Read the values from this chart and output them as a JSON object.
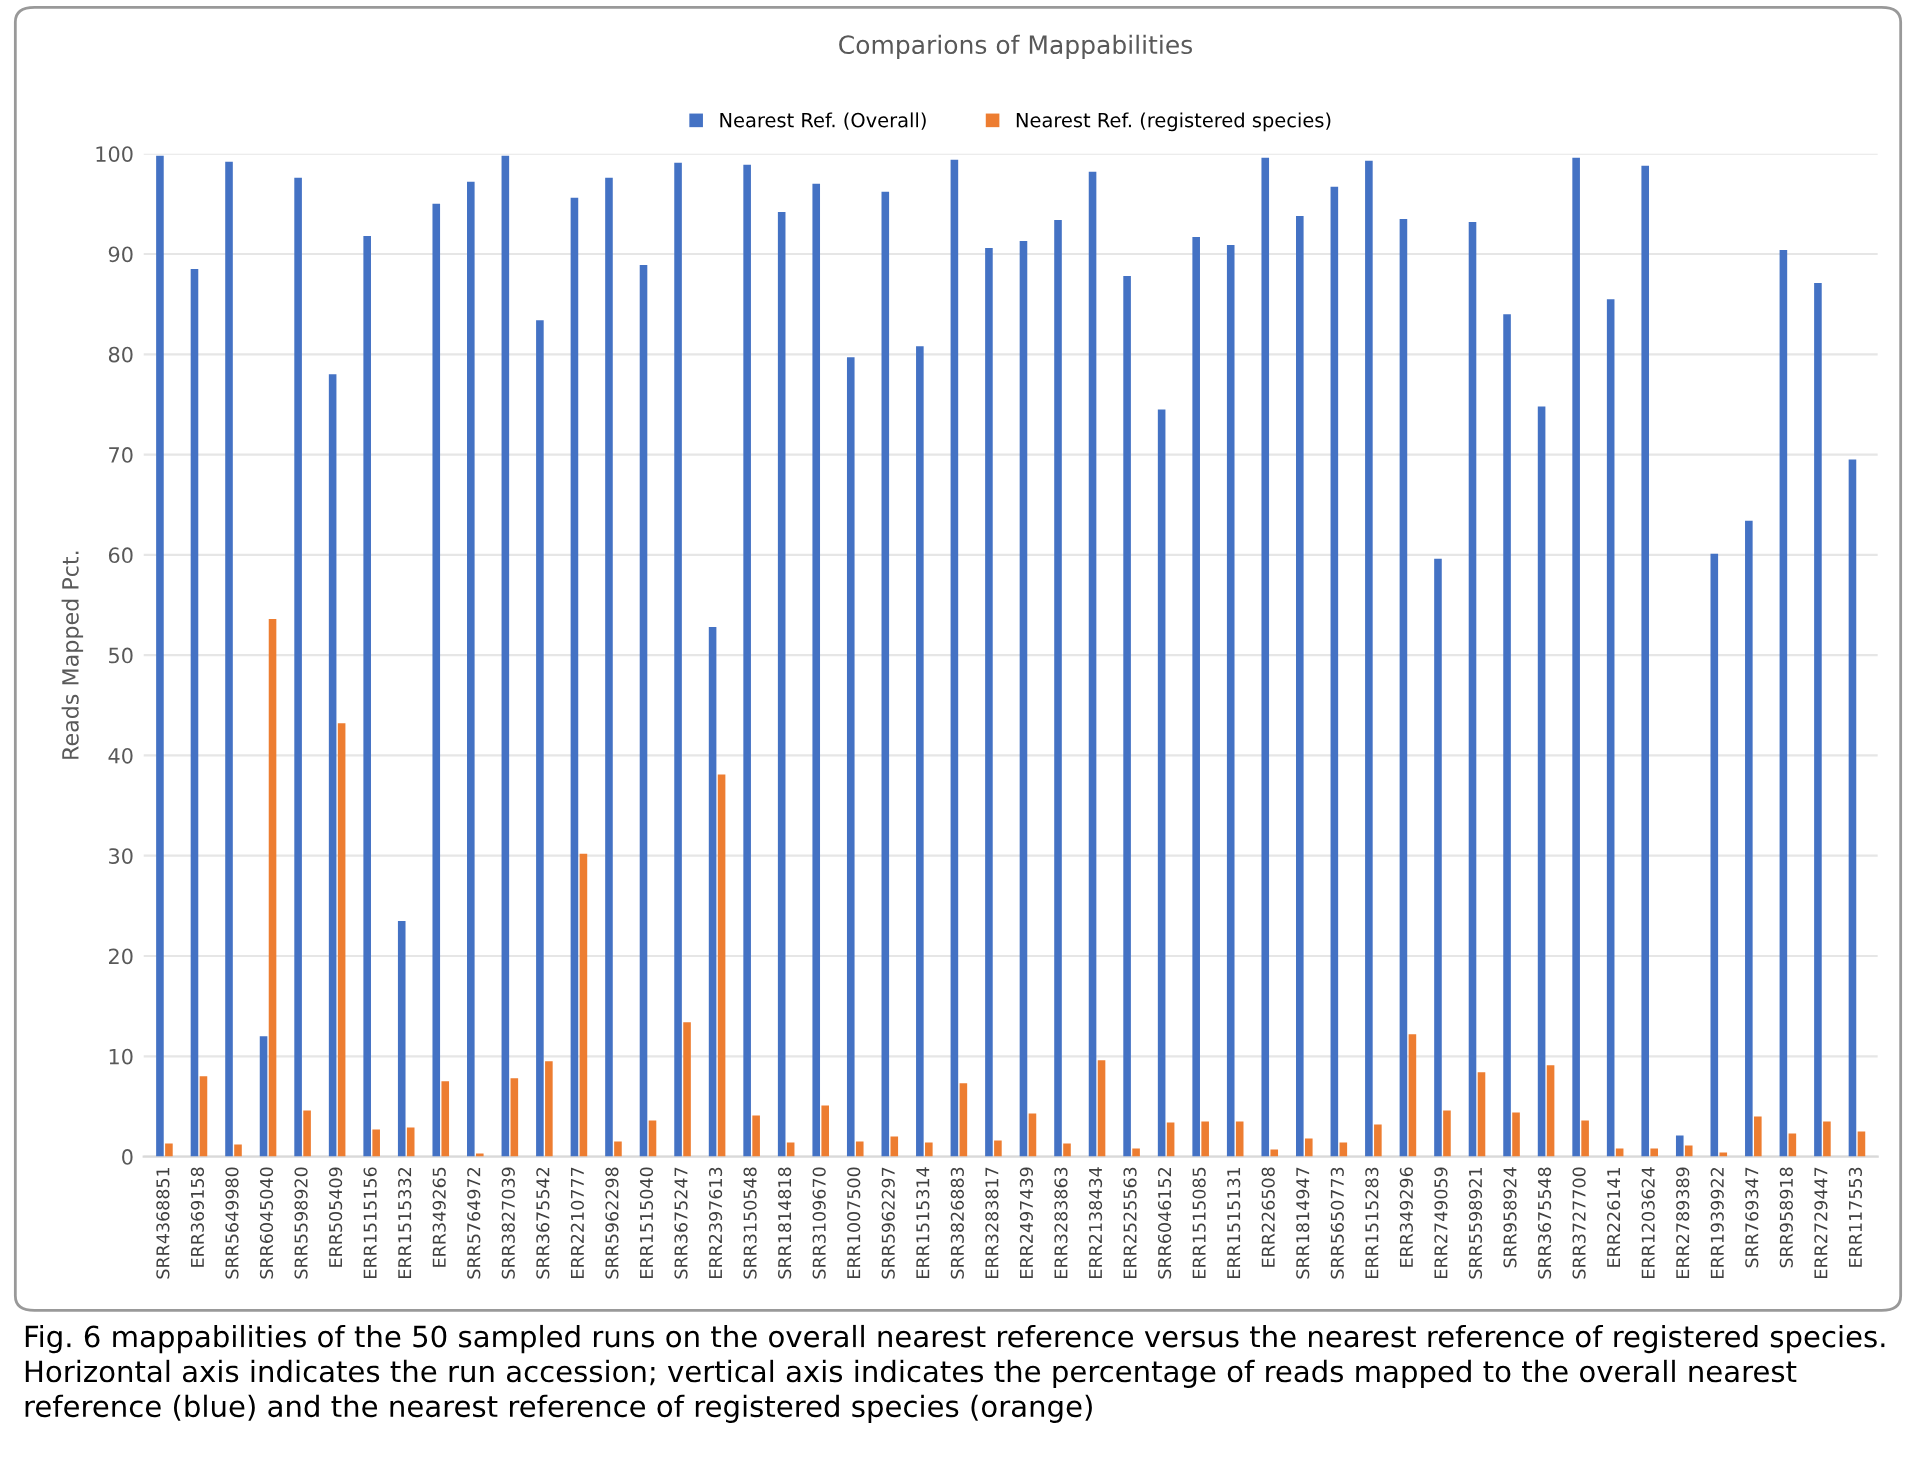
{
  "chart_data": {
    "type": "bar",
    "title": "Comparions of Mappabilities",
    "ylabel": "Reads Mapped Pct.",
    "categories": [
      "SRR4368851",
      "ERR369158",
      "SRR5649980",
      "SRR6045040",
      "SRR5598920",
      "ERR505409",
      "ERR1515156",
      "ERR1515332",
      "ERR349265",
      "SRR5764972",
      "SRR3827039",
      "SRR3675542",
      "ERR2210777",
      "SRR5962298",
      "ERR1515040",
      "SRR3675247",
      "ERR2397613",
      "SRR3150548",
      "SRR1814818",
      "SRR3109670",
      "ERR1007500",
      "SRR5962297",
      "ERR1515314",
      "SRR3826883",
      "ERR3283817",
      "ERR2497439",
      "ERR3283863",
      "ERR2138434",
      "ERR2525563",
      "SRR6046152",
      "ERR1515085",
      "ERR1515131",
      "ERR226508",
      "SRR1814947",
      "SRR5650773",
      "ERR1515283",
      "ERR349296",
      "ERR2749059",
      "SRR5598921",
      "SRR958924",
      "SRR3675548",
      "SRR3727700",
      "ERR226141",
      "ERR1203624",
      "ERR2789389",
      "ERR1939922",
      "SRR769347",
      "SRR958918",
      "ERR2729447",
      "ERR117553"
    ],
    "series": [
      {
        "name": "Nearest Ref. (Overall)",
        "color": "#4472c4",
        "values": [
          99.8,
          88.5,
          99.2,
          12,
          97.6,
          78,
          91.8,
          23.5,
          95,
          97.2,
          99.8,
          83.4,
          95.6,
          97.6,
          88.9,
          99.1,
          52.8,
          98.9,
          94.2,
          97,
          79.7,
          96.2,
          80.8,
          99.4,
          90.6,
          91.3,
          93.4,
          98.2,
          87.8,
          74.5,
          91.7,
          90.9,
          99.6,
          93.8,
          96.7,
          99.3,
          93.5,
          59.6,
          93.2,
          84,
          74.8,
          99.6,
          85.5,
          98.8,
          2.1,
          60.1,
          63.4,
          90.4,
          87.1,
          69.5
        ]
      },
      {
        "name": "Nearest Ref. (registered species)",
        "color": "#ed7d31",
        "values": [
          1.3,
          8.0,
          1.2,
          53.6,
          4.6,
          43.2,
          2.7,
          2.9,
          7.5,
          0.3,
          7.8,
          9.5,
          30.2,
          1.5,
          3.6,
          13.4,
          38.1,
          4.1,
          1.4,
          5.1,
          1.5,
          2.0,
          1.4,
          7.3,
          1.6,
          4.3,
          1.3,
          9.6,
          0.8,
          3.4,
          3.5,
          3.5,
          0.7,
          1.8,
          1.4,
          3.2,
          12.2,
          4.6,
          8.4,
          4.4,
          9.1,
          3.6,
          0.8,
          0.8,
          1.1,
          0.4,
          4.0,
          2.3,
          3.5,
          2.5
        ]
      }
    ],
    "ylim": [
      0,
      100
    ],
    "yticks": [
      0,
      10,
      20,
      30,
      40,
      50,
      60,
      70,
      80,
      90,
      100
    ],
    "grid": "y",
    "legend": "top",
    "annotations": [
      "Fig. 6 mappabilities of the 50 sampled runs on the overall nearest reference versus the nearest reference of registered species. Horizontal axis indicates the run accession; vertical axis indicates the percentage of reads mapped to the overall nearest reference (blue) and the nearest reference of registered species (orange)"
    ]
  }
}
